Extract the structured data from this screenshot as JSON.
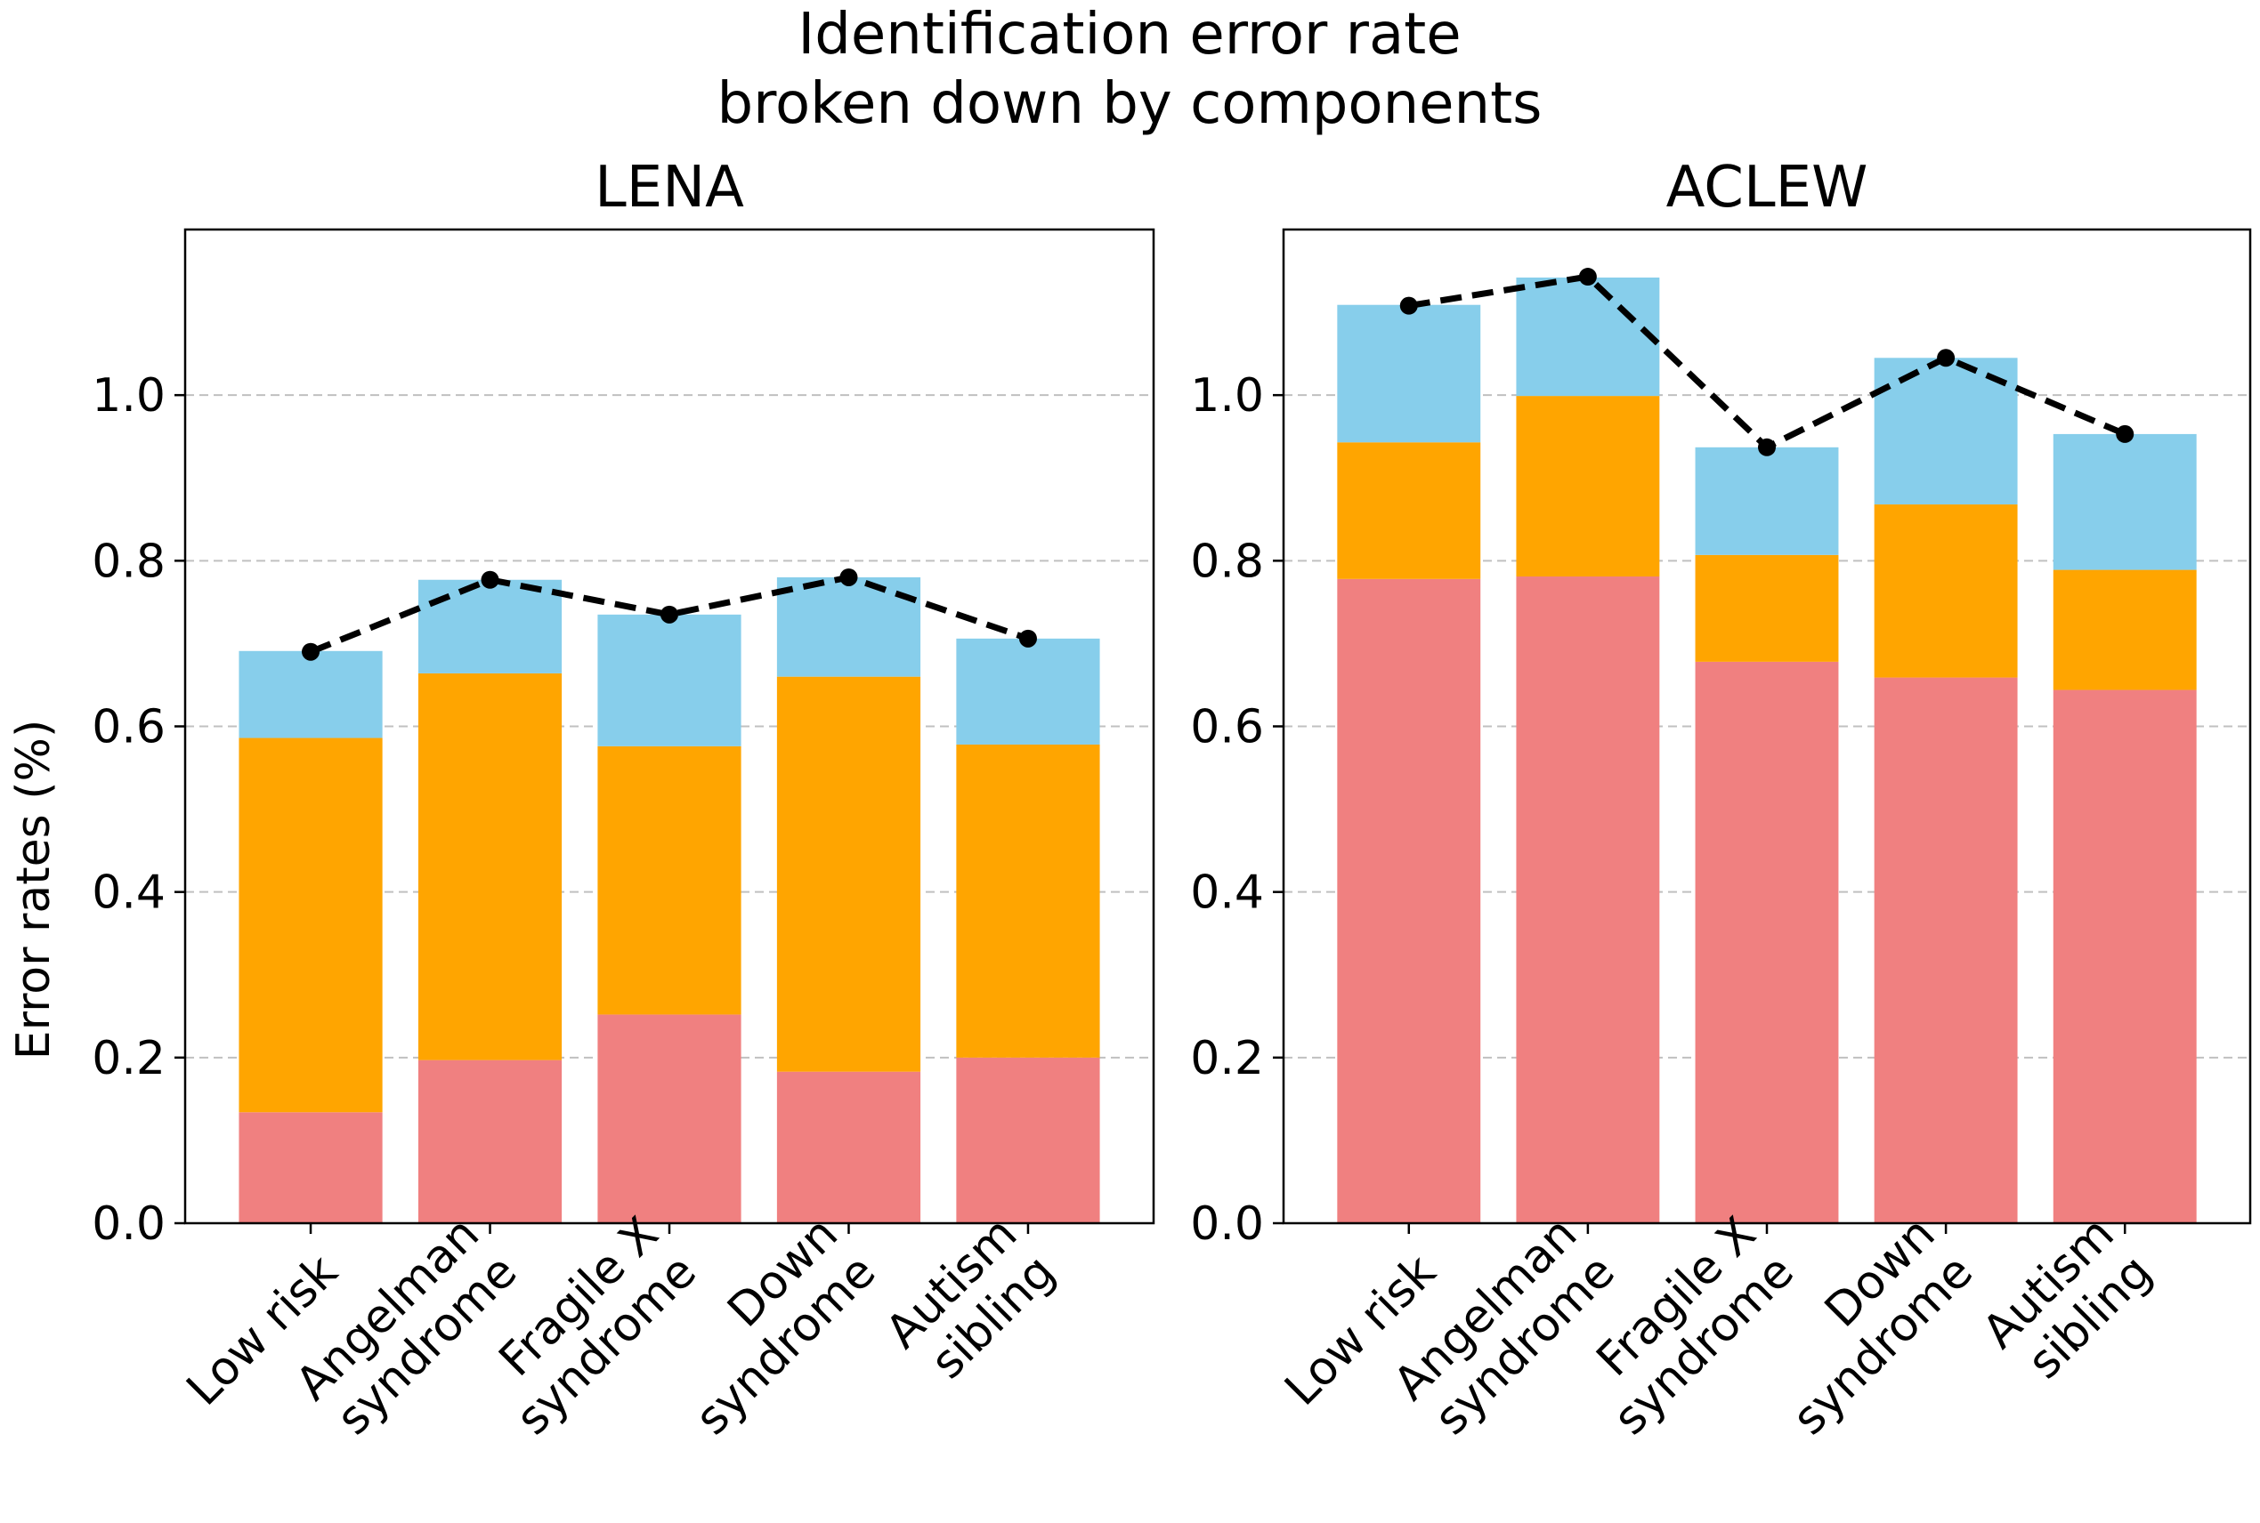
{
  "figure": {
    "title_lines": [
      "Identification error rate",
      "broken down by components"
    ],
    "ylabel": "Error rates (%)"
  },
  "colors": {
    "bottom": "#f08080",
    "middle": "#ffa500",
    "top": "#87ceeb",
    "line": "#000000",
    "grid": "#c0c0c0"
  },
  "chart_data": [
    {
      "type": "bar",
      "stacked": true,
      "title": "LENA",
      "categories": [
        [
          "Low risk"
        ],
        [
          "Angelman",
          "syndrome"
        ],
        [
          "Fragile X",
          "syndrome"
        ],
        [
          "Down",
          "syndrome"
        ],
        [
          "Autism",
          "sibling"
        ]
      ],
      "series": [
        {
          "color_key": "bottom",
          "values": [
            0.134,
            0.197,
            0.252,
            0.183,
            0.2
          ]
        },
        {
          "color_key": "middle",
          "values": [
            0.452,
            0.467,
            0.324,
            0.477,
            0.378
          ]
        },
        {
          "color_key": "top",
          "values": [
            0.105,
            0.113,
            0.159,
            0.12,
            0.128
          ]
        }
      ],
      "line": {
        "style": "dashed",
        "marker": "circle",
        "values": [
          0.69,
          0.777,
          0.735,
          0.78,
          0.706
        ]
      },
      "ylim": [
        0,
        1.2
      ],
      "yticks": [
        0.0,
        0.2,
        0.4,
        0.6,
        0.8,
        1.0
      ],
      "grid": "y-dashed",
      "show_ylabel": true
    },
    {
      "type": "bar",
      "stacked": true,
      "title": "ACLEW",
      "categories": [
        [
          "Low risk"
        ],
        [
          "Angelman",
          "syndrome"
        ],
        [
          "Fragile X",
          "syndrome"
        ],
        [
          "Down",
          "syndrome"
        ],
        [
          "Autism",
          "sibling"
        ]
      ],
      "series": [
        {
          "color_key": "bottom",
          "values": [
            0.778,
            0.781,
            0.678,
            0.659,
            0.644
          ]
        },
        {
          "color_key": "middle",
          "values": [
            0.165,
            0.218,
            0.129,
            0.209,
            0.145
          ]
        },
        {
          "color_key": "top",
          "values": [
            0.166,
            0.143,
            0.13,
            0.177,
            0.164
          ]
        }
      ],
      "line": {
        "style": "dashed",
        "marker": "circle",
        "values": [
          1.108,
          1.143,
          0.937,
          1.045,
          0.953
        ]
      },
      "ylim": [
        0,
        1.2
      ],
      "yticks": [
        0.0,
        0.2,
        0.4,
        0.6,
        0.8,
        1.0
      ],
      "grid": "y-dashed",
      "show_ylabel": false
    }
  ]
}
